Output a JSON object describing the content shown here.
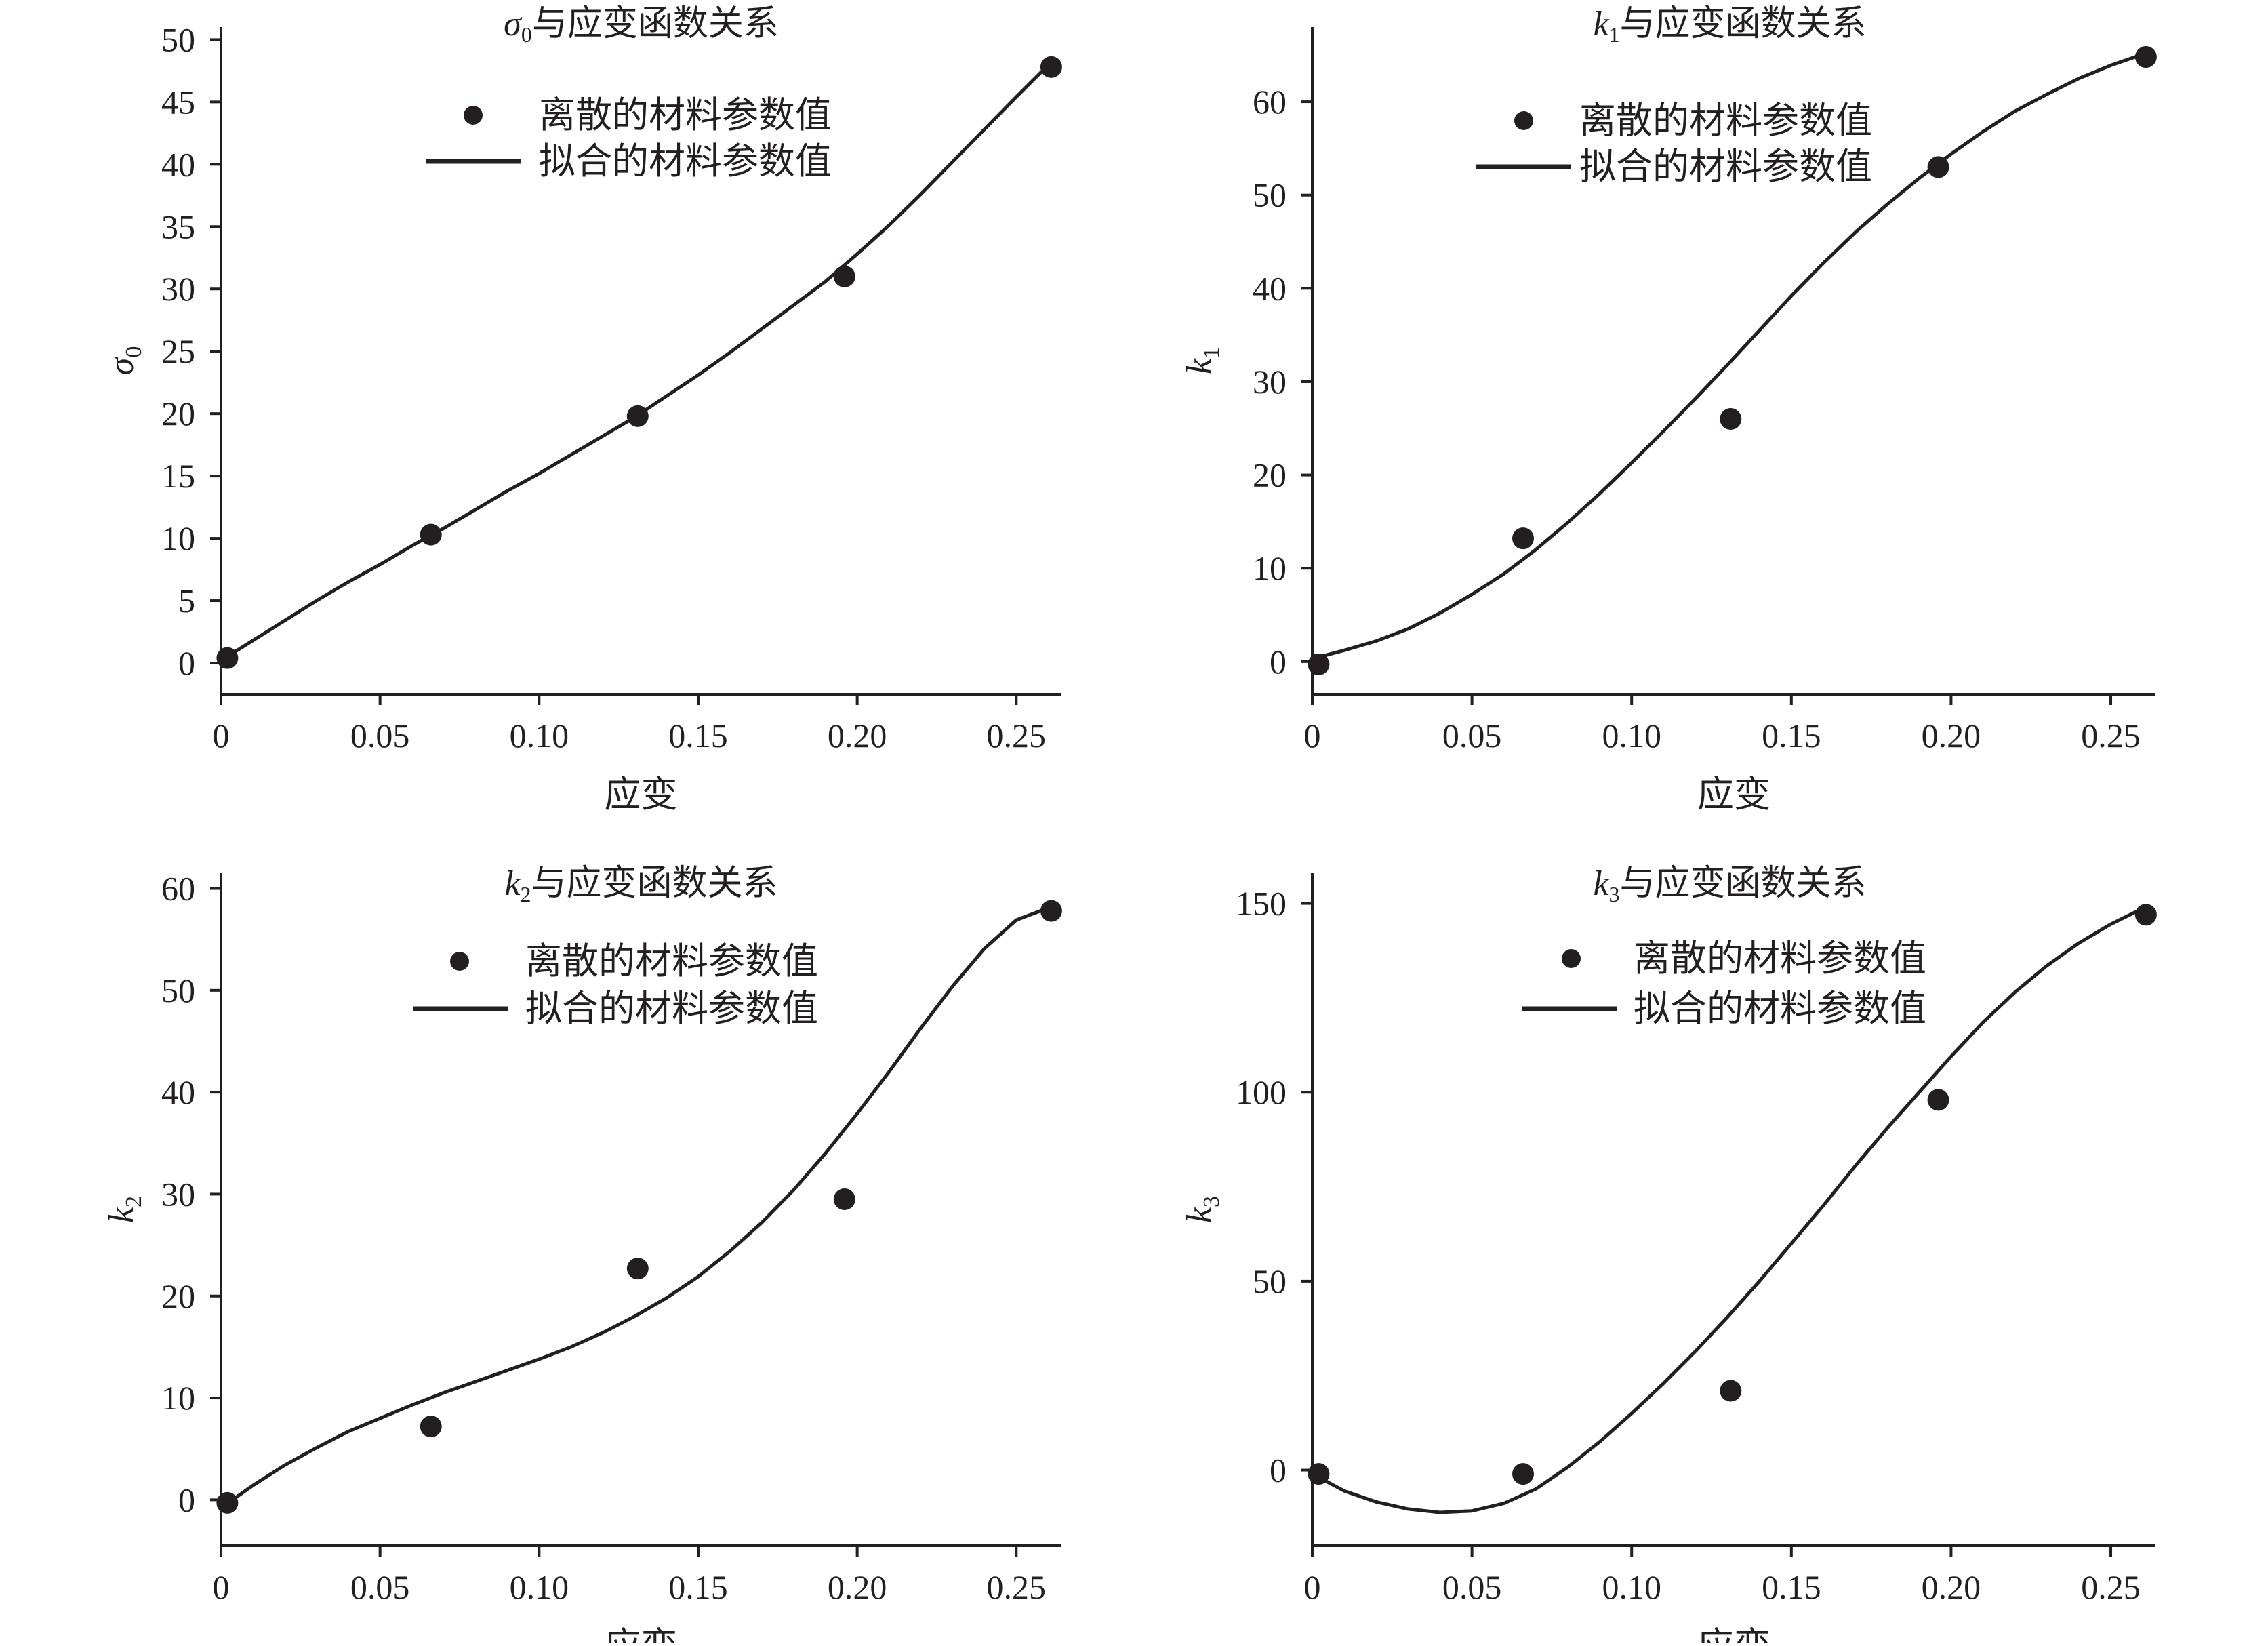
{
  "chart_data": [
    {
      "type": "scatter",
      "id": "sigma0",
      "title_symbol": "σ",
      "title_sub": "0",
      "title_text": "与应变函数关系",
      "ylabel_symbol": "σ",
      "ylabel_sub": "0",
      "ylabel_italic": true,
      "xlabel": "应变",
      "xlim": [
        0,
        0.264
      ],
      "ylim": [
        -2.5,
        51
      ],
      "xticks": [
        0,
        0.05,
        0.1,
        0.15,
        0.2,
        0.25
      ],
      "xtick_labels": [
        "0",
        "0.05",
        "0.10",
        "0.15",
        "0.20",
        "0.25"
      ],
      "yticks": [
        0,
        5,
        10,
        15,
        20,
        25,
        30,
        35,
        40,
        45,
        50
      ],
      "ytick_labels": [
        "0",
        "5",
        "10",
        "15",
        "20",
        "25",
        "30",
        "35",
        "40",
        "45",
        "50"
      ],
      "legend": {
        "placement": "top-center",
        "points_label": "离散的材料参数值",
        "line_label": "拟合的材料参数值"
      },
      "points": {
        "x": [
          0.002,
          0.066,
          0.131,
          0.196,
          0.261
        ],
        "y": [
          0.4,
          10.3,
          19.8,
          31.0,
          47.8
        ]
      },
      "fit_curve": {
        "x": [
          0,
          0.01,
          0.02,
          0.03,
          0.04,
          0.05,
          0.06,
          0.07,
          0.08,
          0.09,
          0.1,
          0.11,
          0.12,
          0.13,
          0.14,
          0.15,
          0.16,
          0.17,
          0.18,
          0.19,
          0.2,
          0.21,
          0.22,
          0.23,
          0.24,
          0.25,
          0.261
        ],
        "y": [
          0.2,
          1.8,
          3.4,
          5.0,
          6.5,
          7.9,
          9.4,
          10.8,
          12.3,
          13.8,
          15.2,
          16.7,
          18.2,
          19.7,
          21.4,
          23.1,
          24.9,
          26.8,
          28.7,
          30.6,
          32.8,
          35.1,
          37.6,
          40.2,
          42.8,
          45.4,
          48.2
        ]
      }
    },
    {
      "type": "scatter",
      "id": "k1",
      "title_symbol": "k",
      "title_sub": "1",
      "title_text": "与应变函数关系",
      "ylabel_symbol": "k",
      "ylabel_sub": "1",
      "ylabel_italic": true,
      "xlabel": "应变",
      "xlim": [
        0,
        0.264
      ],
      "ylim": [
        -3.5,
        68
      ],
      "xticks": [
        0,
        0.05,
        0.1,
        0.15,
        0.2,
        0.25
      ],
      "xtick_labels": [
        "0",
        "0.05",
        "0.10",
        "0.15",
        "0.20",
        "0.25"
      ],
      "yticks": [
        0,
        10,
        20,
        30,
        40,
        50,
        60
      ],
      "ytick_labels": [
        "0",
        "10",
        "20",
        "30",
        "40",
        "50",
        "60"
      ],
      "legend": {
        "placement": "top-center",
        "points_label": "离散的材料参数值",
        "line_label": "拟合的材料参数值"
      },
      "points": {
        "x": [
          0.002,
          0.066,
          0.131,
          0.196,
          0.261
        ],
        "y": [
          -0.3,
          13.2,
          26.0,
          53.0,
          64.8
        ]
      },
      "fit_curve": {
        "x": [
          0,
          0.01,
          0.02,
          0.03,
          0.04,
          0.05,
          0.06,
          0.07,
          0.08,
          0.09,
          0.1,
          0.11,
          0.12,
          0.13,
          0.14,
          0.15,
          0.16,
          0.17,
          0.18,
          0.19,
          0.2,
          0.21,
          0.22,
          0.23,
          0.24,
          0.25,
          0.261
        ],
        "y": [
          0.3,
          1.2,
          2.2,
          3.5,
          5.2,
          7.2,
          9.4,
          12.0,
          14.9,
          18.0,
          21.3,
          24.7,
          28.2,
          31.8,
          35.5,
          39.2,
          42.7,
          46.0,
          49.0,
          51.8,
          54.4,
          56.8,
          59.0,
          60.8,
          62.5,
          63.9,
          65.2
        ]
      }
    },
    {
      "type": "scatter",
      "id": "k2",
      "title_symbol": "k",
      "title_sub": "2",
      "title_text": "与应变函数关系",
      "ylabel_symbol": "k",
      "ylabel_sub": "2",
      "ylabel_italic": true,
      "xlabel": "应变",
      "xlim": [
        0,
        0.264
      ],
      "ylim": [
        -4.5,
        61.5
      ],
      "xticks": [
        0,
        0.05,
        0.1,
        0.15,
        0.2,
        0.25
      ],
      "xtick_labels": [
        "0",
        "0.05",
        "0.10",
        "0.15",
        "0.20",
        "0.25"
      ],
      "yticks": [
        0,
        10,
        20,
        30,
        40,
        50,
        60
      ],
      "ytick_labels": [
        "0",
        "10",
        "20",
        "30",
        "40",
        "50",
        "60"
      ],
      "legend": {
        "placement": "top-center",
        "points_label": "离散的材料参数值",
        "line_label": "拟合的材料参数值"
      },
      "points": {
        "x": [
          0.002,
          0.066,
          0.131,
          0.196,
          0.261
        ],
        "y": [
          -0.3,
          7.2,
          22.7,
          29.5,
          57.8
        ]
      },
      "fit_curve": {
        "x": [
          0,
          0.01,
          0.02,
          0.03,
          0.04,
          0.05,
          0.06,
          0.07,
          0.08,
          0.09,
          0.1,
          0.11,
          0.12,
          0.13,
          0.14,
          0.15,
          0.16,
          0.17,
          0.18,
          0.19,
          0.2,
          0.21,
          0.22,
          0.23,
          0.24,
          0.25,
          0.261
        ],
        "y": [
          -0.8,
          1.4,
          3.4,
          5.1,
          6.7,
          8.0,
          9.3,
          10.5,
          11.6,
          12.7,
          13.8,
          15.0,
          16.4,
          18.0,
          19.8,
          21.9,
          24.4,
          27.2,
          30.4,
          34.0,
          37.9,
          42.0,
          46.3,
          50.4,
          54.1,
          56.9,
          58.2
        ]
      }
    },
    {
      "type": "scatter",
      "id": "k3",
      "title_symbol": "k",
      "title_sub": "3",
      "title_text": "与应变函数关系",
      "ylabel_symbol": "k",
      "ylabel_sub": "3",
      "ylabel_italic": true,
      "xlabel": "应变",
      "xlim": [
        0,
        0.264
      ],
      "ylim": [
        -20,
        158
      ],
      "xticks": [
        0,
        0.05,
        0.1,
        0.15,
        0.2,
        0.25
      ],
      "xtick_labels": [
        "0",
        "0.05",
        "0.10",
        "0.15",
        "0.20",
        "0.25"
      ],
      "yticks": [
        0,
        50,
        100,
        150
      ],
      "ytick_labels": [
        "0",
        "50",
        "100",
        "150"
      ],
      "legend": {
        "placement": "top-center",
        "points_label": "离散的材料参数值",
        "line_label": "拟合的材料参数值"
      },
      "points": {
        "x": [
          0.002,
          0.066,
          0.131,
          0.196,
          0.261
        ],
        "y": [
          -1.0,
          -1.0,
          21.0,
          98.0,
          147.0
        ]
      },
      "fit_curve": {
        "x": [
          0,
          0.01,
          0.02,
          0.03,
          0.04,
          0.05,
          0.06,
          0.07,
          0.08,
          0.09,
          0.1,
          0.11,
          0.12,
          0.13,
          0.14,
          0.15,
          0.16,
          0.17,
          0.18,
          0.19,
          0.2,
          0.21,
          0.22,
          0.23,
          0.24,
          0.25,
          0.262
        ],
        "y": [
          -1.0,
          -5.5,
          -8.4,
          -10.3,
          -11.2,
          -10.8,
          -8.8,
          -5.0,
          0.8,
          7.5,
          15.0,
          23.0,
          31.5,
          40.5,
          50.0,
          60.0,
          70.0,
          80.5,
          90.5,
          100.0,
          109.5,
          118.5,
          126.5,
          133.5,
          139.5,
          144.5,
          149.5
        ]
      }
    }
  ]
}
